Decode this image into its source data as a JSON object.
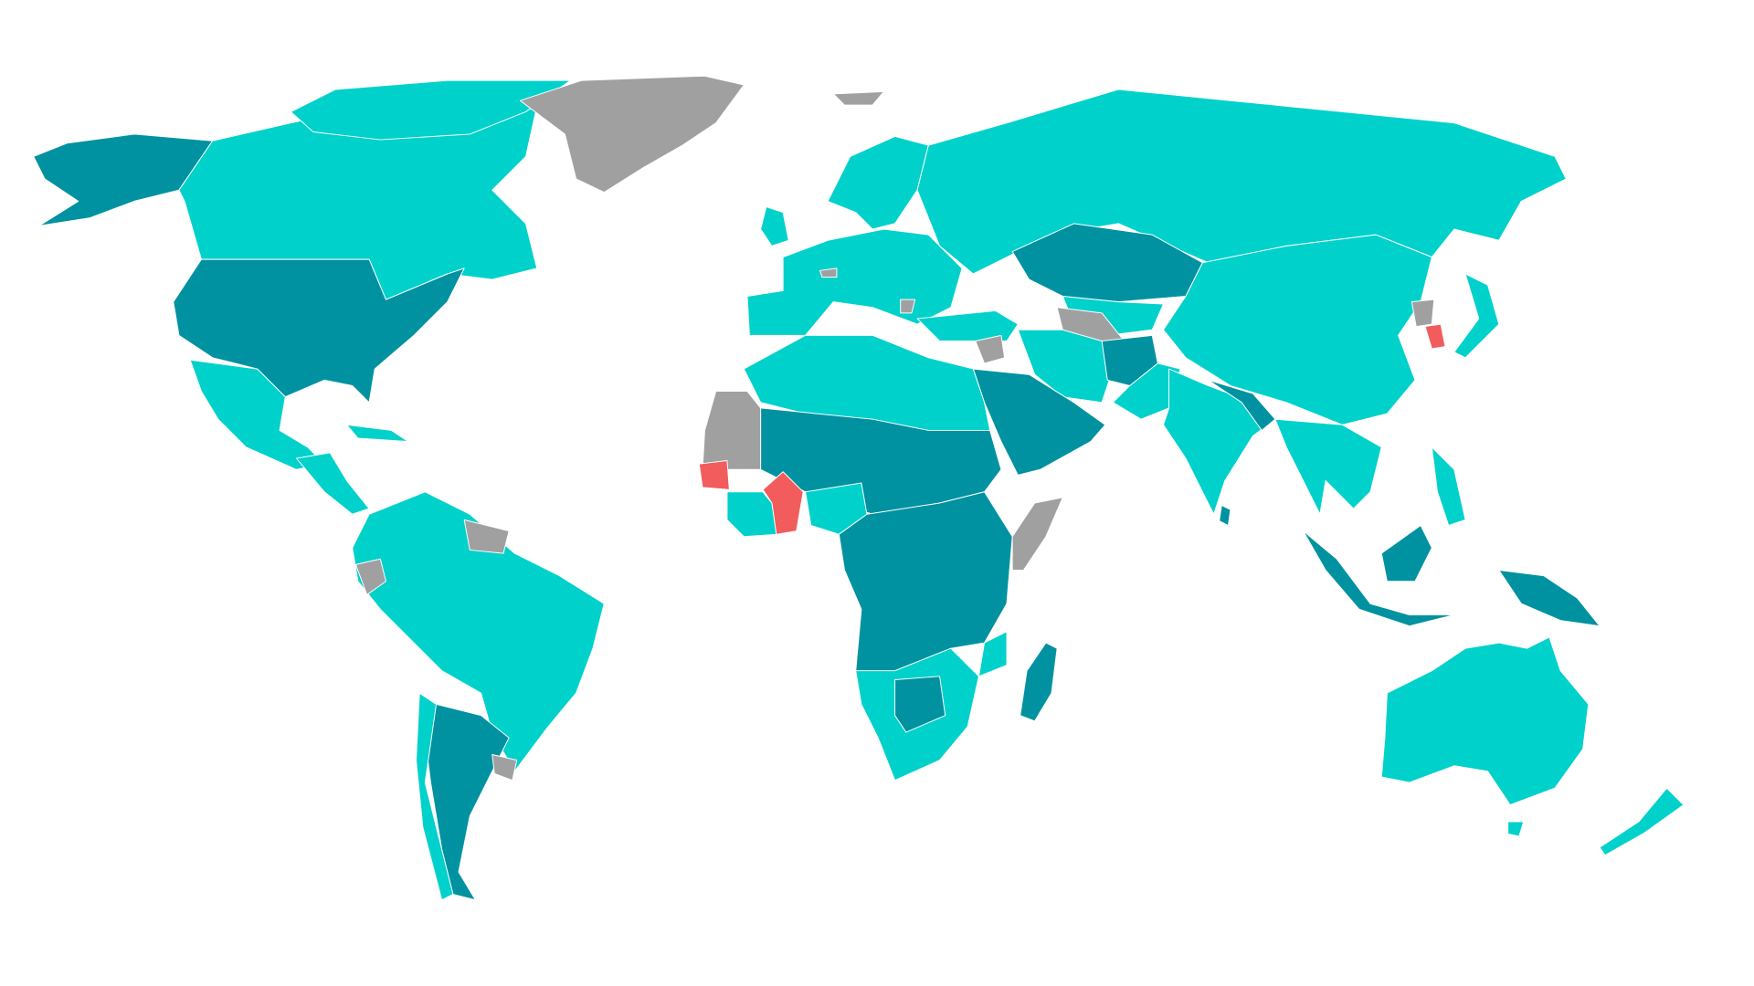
{
  "map": {
    "type": "choropleth-world",
    "palette": {
      "light": "#00D1CB",
      "dark": "#0092A0",
      "nodata": "#A0A0A0",
      "highlight": "#F25C5C"
    },
    "background": "#FFFFFF"
  }
}
